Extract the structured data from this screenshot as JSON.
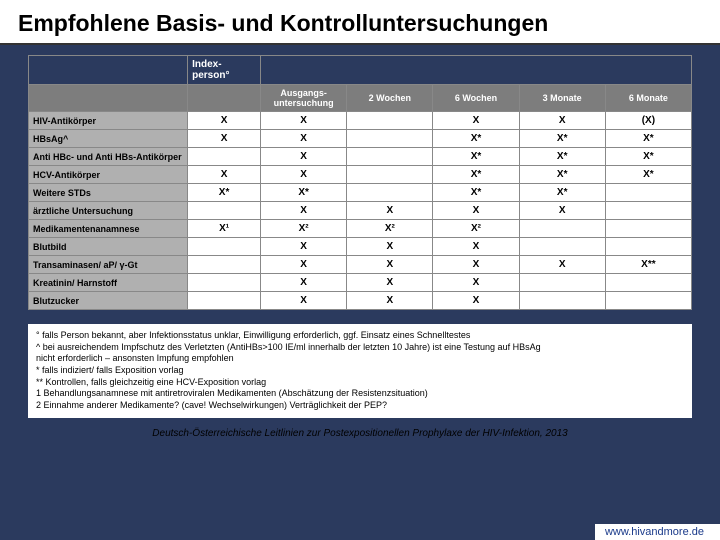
{
  "title": "Empfohlene Basis- und Kontrolluntersuchungen",
  "table": {
    "header_top": {
      "index_label": "Index-person°",
      "timepoints": [
        "Ausgangs-untersuchung",
        "2 Wochen",
        "6 Wochen",
        "3 Monate",
        "6 Monate"
      ]
    },
    "rows": [
      {
        "label": "HIV-Antikörper",
        "index": "X",
        "cells": [
          "X",
          "",
          "X",
          "X",
          "(X)"
        ]
      },
      {
        "label": "HBsAg^",
        "index": "X",
        "cells": [
          "X",
          "",
          "X*",
          "X*",
          "X*"
        ]
      },
      {
        "label": "Anti HBc- und Anti HBs-Antikörper",
        "index": "",
        "cells": [
          "X",
          "",
          "X*",
          "X*",
          "X*"
        ]
      },
      {
        "label": "HCV-Antikörper",
        "index": "X",
        "cells": [
          "X",
          "",
          "X*",
          "X*",
          "X*"
        ]
      },
      {
        "label": "Weitere STDs",
        "index": "X*",
        "cells": [
          "X*",
          "",
          "X*",
          "X*",
          ""
        ]
      },
      {
        "label": "ärztliche Untersuchung",
        "index": "",
        "cells": [
          "X",
          "X",
          "X",
          "X",
          ""
        ]
      },
      {
        "label": "Medikamentenanamnese",
        "index": "X¹",
        "cells": [
          "X²",
          "X²",
          "X²",
          "",
          ""
        ]
      },
      {
        "label": "Blutbild",
        "index": "",
        "cells": [
          "X",
          "X",
          "X",
          "",
          ""
        ]
      },
      {
        "label": "Transaminasen/ aP/ γ-Gt",
        "index": "",
        "cells": [
          "X",
          "X",
          "X",
          "X",
          "X**"
        ]
      },
      {
        "label": "Kreatinin/ Harnstoff",
        "index": "",
        "cells": [
          "X",
          "X",
          "X",
          "",
          ""
        ]
      },
      {
        "label": "Blutzucker",
        "index": "",
        "cells": [
          "X",
          "X",
          "X",
          "",
          ""
        ]
      }
    ]
  },
  "footnotes": [
    "° falls Person bekannt, aber Infektionsstatus unklar, Einwilligung erforderlich, ggf. Einsatz eines Schnelltestes",
    "^ bei ausreichendem Impfschutz des Verletzten (AntiHBs>100 IE/ml innerhalb der letzten 10 Jahre) ist eine Testung auf HBsAg",
    "nicht erforderlich – ansonsten Impfung empfohlen",
    "* falls indiziert/ falls Exposition vorlag",
    "** Kontrollen, falls gleichzeitig eine HCV-Exposition vorlag",
    "1 Behandlungsanamnese mit antiretroviralen Medikamenten (Abschätzung der Resistenzsituation)",
    "2 Einnahme anderer Medikamente? (cave! Wechselwirkungen) Verträglichkeit der PEP?"
  ],
  "citation": "Deutsch-Österreichische Leitlinien zur Postexpositionellen Prophylaxe der HIV-Infektion, 2013",
  "footer_link": "www.hivandmore.de",
  "colors": {
    "background": "#2b3a5e",
    "header_bg": "#7d7d7d",
    "row_label_bg": "#b0b0b0",
    "text": "#000000",
    "link": "#1a3a8a"
  }
}
